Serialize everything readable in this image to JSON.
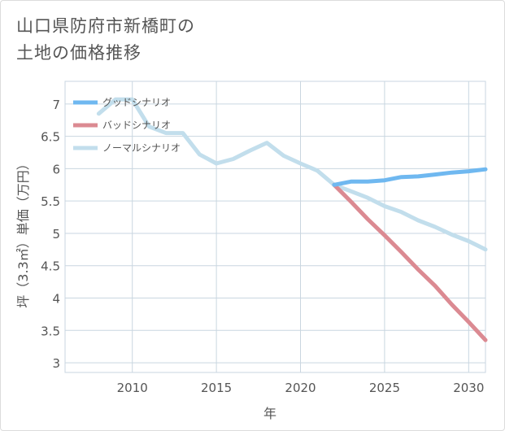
{
  "title": {
    "line1": "山口県防府市新橋町の",
    "line2": "土地の価格推移"
  },
  "chart_data": {
    "type": "line",
    "xlabel": "年",
    "ylabel": "坪（3.3㎡）単価（万円）",
    "xlim": [
      2006,
      2031
    ],
    "ylim": [
      2.85,
      7.35
    ],
    "xticks": [
      2010,
      2015,
      2020,
      2025,
      2030
    ],
    "yticks": [
      3,
      3.5,
      4,
      4.5,
      5,
      5.5,
      6,
      6.5,
      7
    ],
    "grid": true,
    "legend_position": "top-left",
    "series": [
      {
        "name": "グッドシナリオ",
        "color": "#6fb8f0",
        "x": [
          2022,
          2023,
          2024,
          2025,
          2026,
          2027,
          2028,
          2029,
          2030,
          2031
        ],
        "y": [
          5.75,
          5.8,
          5.8,
          5.82,
          5.87,
          5.88,
          5.91,
          5.94,
          5.96,
          5.99
        ]
      },
      {
        "name": "バッドシナリオ",
        "color": "#db8a92",
        "x": [
          2022,
          2023,
          2024,
          2025,
          2026,
          2027,
          2028,
          2029,
          2030,
          2031
        ],
        "y": [
          5.75,
          5.49,
          5.22,
          4.97,
          4.71,
          4.44,
          4.19,
          3.9,
          3.63,
          3.35
        ]
      },
      {
        "name": "ノーマルシナリオ",
        "color": "#c2deec",
        "x": [
          2008,
          2009,
          2010,
          2011,
          2012,
          2013,
          2014,
          2015,
          2016,
          2017,
          2018,
          2019,
          2020,
          2021,
          2022,
          2023,
          2024,
          2025,
          2026,
          2027,
          2028,
          2029,
          2030,
          2031
        ],
        "y": [
          6.85,
          7.07,
          7.07,
          6.65,
          6.55,
          6.55,
          6.22,
          6.08,
          6.15,
          6.28,
          6.4,
          6.2,
          6.08,
          5.97,
          5.75,
          5.65,
          5.55,
          5.42,
          5.33,
          5.2,
          5.1,
          4.98,
          4.88,
          4.75
        ]
      }
    ]
  }
}
